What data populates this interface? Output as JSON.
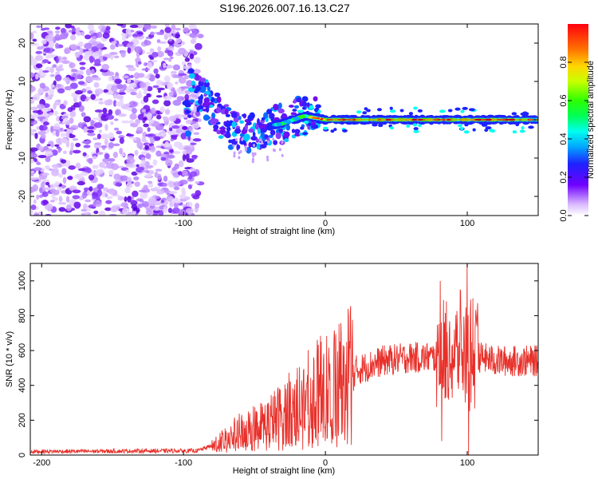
{
  "title": "S196.2026.007.16.13.C27",
  "chart_data": [
    {
      "type": "heatmap",
      "name": "spectrogram",
      "xlabel": "Height of straight line (km)",
      "ylabel": "Frequency (Hz)",
      "xlim": [
        -208,
        150
      ],
      "ylim": [
        -25,
        25
      ],
      "xticks": [
        -200,
        -100,
        0,
        100
      ],
      "yticks": [
        -20,
        -10,
        0,
        10,
        20
      ],
      "colorbar": {
        "label": "Normalized spectral amplitude",
        "range": [
          0,
          1
        ],
        "ticks": [
          "0.0",
          "0.2",
          "0.4",
          "0.6",
          "0.8"
        ],
        "tick_values": [
          0.0,
          0.2,
          0.4,
          0.6,
          0.8
        ]
      },
      "description_points": {
        "noise_region_x": [
          -208,
          -88
        ],
        "tone_track": [
          {
            "x": -95,
            "f": 9
          },
          {
            "x": -85,
            "f": 6
          },
          {
            "x": -75,
            "f": 1
          },
          {
            "x": -65,
            "f": -3
          },
          {
            "x": -55,
            "f": -4
          },
          {
            "x": -45,
            "f": -2
          },
          {
            "x": -30,
            "f": -1
          },
          {
            "x": -15,
            "f": 1
          },
          {
            "x": 0,
            "f": 0
          },
          {
            "x": 50,
            "f": 0
          },
          {
            "x": 100,
            "f": 0
          },
          {
            "x": 150,
            "f": 0
          }
        ]
      }
    },
    {
      "type": "line",
      "name": "snr",
      "xlabel": "Height of straight line (km)",
      "ylabel": "SNR (10 * v/v)",
      "xlim": [
        -208,
        150
      ],
      "ylim": [
        0,
        1100
      ],
      "xticks": [
        -200,
        -100,
        0,
        100
      ],
      "yticks": [
        0,
        200,
        400,
        600,
        800,
        1000
      ],
      "color": "#e8302a",
      "series_profile": [
        {
          "x": -208,
          "y": 20
        },
        {
          "x": -90,
          "y": 25
        },
        {
          "x": -78,
          "y": 60
        },
        {
          "x": -60,
          "y": 130
        },
        {
          "x": -40,
          "y": 180
        },
        {
          "x": -20,
          "y": 280
        },
        {
          "x": 0,
          "y": 380
        },
        {
          "x": 20,
          "y": 480
        },
        {
          "x": 40,
          "y": 540
        },
        {
          "x": 60,
          "y": 560
        },
        {
          "x": 80,
          "y": 560
        },
        {
          "x": 100,
          "y": 580
        },
        {
          "x": 120,
          "y": 540
        },
        {
          "x": 150,
          "y": 540
        }
      ],
      "spikes": [
        {
          "x": 81,
          "y": 1000
        },
        {
          "x": 82,
          "y": 80
        },
        {
          "x": 95,
          "y": 950
        },
        {
          "x": 100,
          "y": 1100
        },
        {
          "x": 101,
          "y": 0
        },
        {
          "x": 104,
          "y": 900
        }
      ]
    }
  ]
}
